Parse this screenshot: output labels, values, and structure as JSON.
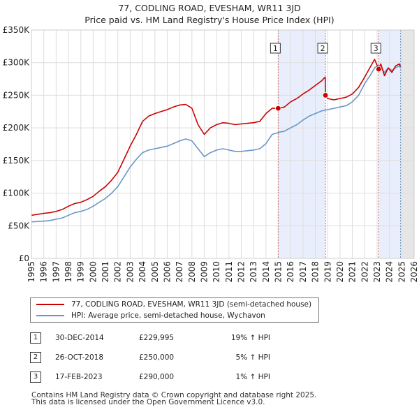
{
  "title_line1": "77, CODLING ROAD, EVESHAM, WR11 3JD",
  "title_line2": "Price paid vs. HM Land Registry's House Price Index (HPI)",
  "chart_data": {
    "type": "line",
    "title": "77, CODLING ROAD, EVESHAM, WR11 3JD — Price paid vs. HM Land Registry's House Price Index (HPI)",
    "xlim": [
      1995,
      2026
    ],
    "ylim": [
      0,
      350000
    ],
    "x_ticks": [
      1995,
      1996,
      1997,
      1998,
      1999,
      2000,
      2001,
      2002,
      2003,
      2004,
      2005,
      2006,
      2007,
      2008,
      2009,
      2010,
      2011,
      2012,
      2013,
      2014,
      2015,
      2016,
      2017,
      2018,
      2019,
      2020,
      2021,
      2022,
      2023,
      2024,
      2025,
      2026
    ],
    "y_ticks": [
      {
        "value": 0,
        "label": "£0"
      },
      {
        "value": 50000,
        "label": "£50K"
      },
      {
        "value": 100000,
        "label": "£100K"
      },
      {
        "value": 150000,
        "label": "£150K"
      },
      {
        "value": 200000,
        "label": "£200K"
      },
      {
        "value": 250000,
        "label": "£250K"
      },
      {
        "value": 300000,
        "label": "£300K"
      },
      {
        "value": 350000,
        "label": "£350K"
      }
    ],
    "grid": true,
    "series": [
      {
        "name": "77, CODLING ROAD, EVESHAM, WR11 3JD (semi-detached house)",
        "color": "#cc0000",
        "x": [
          1995.0,
          1995.5,
          1996.0,
          1996.5,
          1997.0,
          1997.5,
          1998.0,
          1998.5,
          1999.0,
          1999.5,
          2000.0,
          2000.5,
          2001.0,
          2001.5,
          2002.0,
          2002.5,
          2003.0,
          2003.5,
          2004.0,
          2004.5,
          2005.0,
          2005.5,
          2006.0,
          2006.5,
          2007.0,
          2007.5,
          2008.0,
          2008.5,
          2009.0,
          2009.5,
          2010.0,
          2010.5,
          2011.0,
          2011.5,
          2012.0,
          2012.5,
          2013.0,
          2013.5,
          2014.0,
          2014.5,
          2014.99,
          2015.5,
          2016.0,
          2016.5,
          2017.0,
          2017.5,
          2018.0,
          2018.5,
          2018.8,
          2018.82,
          2019.0,
          2019.5,
          2020.0,
          2020.5,
          2021.0,
          2021.5,
          2022.0,
          2022.5,
          2022.8,
          2023.13,
          2023.3,
          2023.6,
          2023.9,
          2024.2,
          2024.5,
          2024.8,
          2024.9
        ],
        "y": [
          66000,
          67500,
          69000,
          70000,
          72000,
          75000,
          80000,
          84000,
          86000,
          90000,
          95000,
          103000,
          110000,
          120000,
          132000,
          152000,
          172000,
          190000,
          210000,
          218000,
          222000,
          225000,
          228000,
          232000,
          235000,
          236000,
          230000,
          205000,
          190000,
          200000,
          205000,
          208000,
          207000,
          205000,
          206000,
          207000,
          208000,
          210000,
          222000,
          230000,
          229995,
          232000,
          240000,
          245000,
          252000,
          258000,
          265000,
          272000,
          278000,
          250000,
          245000,
          243000,
          245000,
          247000,
          252000,
          262000,
          278000,
          295000,
          305000,
          290000,
          298000,
          280000,
          292000,
          285000,
          295000,
          298000,
          294000
        ]
      },
      {
        "name": "HPI: Average price, semi-detached house, Wychavon",
        "color": "#6a96c8",
        "x": [
          1995.0,
          1995.5,
          1996.0,
          1996.5,
          1997.0,
          1997.5,
          1998.0,
          1998.5,
          1999.0,
          1999.5,
          2000.0,
          2000.5,
          2001.0,
          2001.5,
          2002.0,
          2002.5,
          2003.0,
          2003.5,
          2004.0,
          2004.5,
          2005.0,
          2005.5,
          2006.0,
          2006.5,
          2007.0,
          2007.5,
          2008.0,
          2008.5,
          2009.0,
          2009.5,
          2010.0,
          2010.5,
          2011.0,
          2011.5,
          2012.0,
          2012.5,
          2013.0,
          2013.5,
          2014.0,
          2014.5,
          2015.0,
          2015.5,
          2016.0,
          2016.5,
          2017.0,
          2017.5,
          2018.0,
          2018.5,
          2019.0,
          2019.5,
          2020.0,
          2020.5,
          2021.0,
          2021.5,
          2022.0,
          2022.5,
          2022.8,
          2023.1,
          2023.3,
          2023.6,
          2023.9,
          2024.2,
          2024.5,
          2024.8,
          2024.9
        ],
        "y": [
          56000,
          56500,
          57000,
          58000,
          60000,
          62000,
          66000,
          70000,
          72000,
          75000,
          80000,
          86000,
          92000,
          100000,
          110000,
          125000,
          140000,
          152000,
          162000,
          166000,
          168000,
          170000,
          172000,
          176000,
          180000,
          183000,
          180000,
          168000,
          156000,
          162000,
          166000,
          168000,
          166000,
          164000,
          164000,
          165000,
          166000,
          168000,
          176000,
          190000,
          193000,
          195000,
          200000,
          205000,
          212000,
          218000,
          222000,
          226000,
          228000,
          230000,
          232000,
          234000,
          240000,
          250000,
          268000,
          282000,
          292000,
          296000,
          292000,
          285000,
          292000,
          288000,
          292000,
          295000,
          292000
        ]
      }
    ],
    "sales": [
      {
        "id": "1",
        "x": 2014.99,
        "price": 229995
      },
      {
        "id": "2",
        "x": 2018.82,
        "price": 250000
      },
      {
        "id": "3",
        "x": 2023.13,
        "price": 290000
      }
    ]
  },
  "legend": {
    "property": "77, CODLING ROAD, EVESHAM, WR11 3JD (semi-detached house)",
    "hpi": "HPI: Average price, semi-detached house, Wychavon"
  },
  "sales_table": [
    {
      "num": "1",
      "date": "30-DEC-2014",
      "price": "£229,995",
      "hpi": "19% ↑ HPI"
    },
    {
      "num": "2",
      "date": "26-OCT-2018",
      "price": "£250,000",
      "hpi": "5% ↑ HPI"
    },
    {
      "num": "3",
      "date": "17-FEB-2023",
      "price": "£290,000",
      "hpi": "1% ↑ HPI"
    }
  ],
  "footer": {
    "line1": "Contains HM Land Registry data © Crown copyright and database right 2025.",
    "line2": "This data is licensed under the Open Government Licence v3.0."
  },
  "colors": {
    "property": "#cc0000",
    "hpi": "#6a96c8",
    "sale_band": "#e8eefb",
    "future_band": "#e6e6e6"
  }
}
